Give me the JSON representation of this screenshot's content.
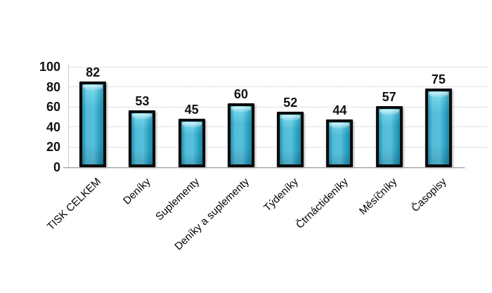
{
  "chart_data": {
    "type": "bar",
    "title": "",
    "xlabel": "",
    "ylabel": "",
    "categories": [
      "TISK CELKEM",
      "Deníky",
      "Suplementy",
      "Deníky a suplementy",
      "Týdeníky",
      "Čtrnáctideníky",
      "Měsíčníky",
      "Časopisy"
    ],
    "values": [
      82,
      53,
      45,
      60,
      52,
      44,
      57,
      75
    ],
    "yticks": [
      0,
      20,
      40,
      60,
      80,
      100
    ],
    "ylim": [
      0,
      100
    ],
    "grid": "horizontal-dotted",
    "legend": null,
    "bar_labels_shown": true
  },
  "colors": {
    "background": "#ffffff",
    "bar_fill_light": "#5fd3ea",
    "bar_fill_main": "#2fb0d2",
    "bar_fill_dark": "#2492b3",
    "bar_border": "#0b0b0b",
    "gridline": "#c6c6c6",
    "axis_line": "#9e9e9e",
    "axis_line_shadow": "#e2e2e2",
    "plot_border": "#cccccc",
    "text": "#111111"
  }
}
